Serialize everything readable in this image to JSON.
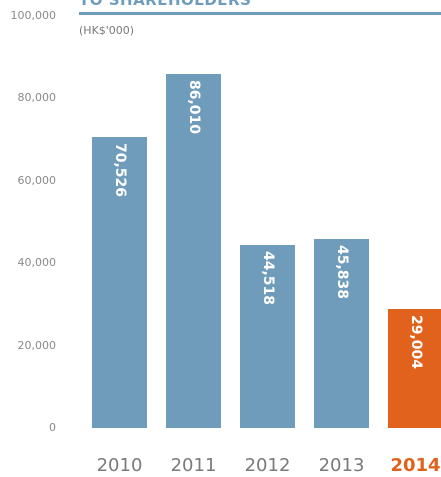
{
  "chart_data": {
    "type": "bar",
    "title": "TO SHAREHOLDERS",
    "unit": "(HK$'000)",
    "categories": [
      "2010",
      "2011",
      "2012",
      "2013",
      "2014"
    ],
    "values": [
      70526,
      86010,
      44518,
      45838,
      29004
    ],
    "value_labels": [
      "70,526",
      "86,010",
      "44,518",
      "45,838",
      "29,004"
    ],
    "highlight_index": 4,
    "ylim": [
      0,
      100000
    ],
    "yticks": [
      0,
      20000,
      40000,
      60000,
      80000,
      100000
    ],
    "ytick_labels": [
      "0",
      "20,000",
      "40,000",
      "60,000",
      "80,000",
      "100,000"
    ],
    "colors": {
      "bar": "#6f9cbb",
      "highlight": "#e0621d",
      "title": "#6f9cbb"
    },
    "grid": false
  }
}
